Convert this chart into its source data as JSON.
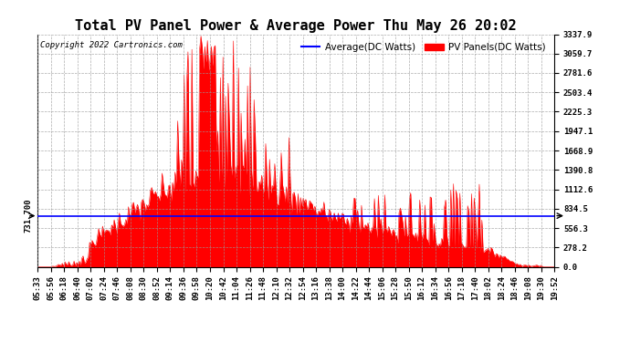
{
  "title": "Total PV Panel Power & Average Power Thu May 26 20:02",
  "copyright": "Copyright 2022 Cartronics.com",
  "legend_avg": "Average(DC Watts)",
  "legend_pv": "PV Panels(DC Watts)",
  "avg_color": "blue",
  "pv_color": "red",
  "bg_color": "#ffffff",
  "plot_bg_color": "#ffffff",
  "grid_color": "#999999",
  "ylim": [
    0.0,
    3337.9
  ],
  "yticks": [
    0.0,
    278.2,
    556.3,
    834.5,
    1112.6,
    1390.8,
    1668.9,
    1947.1,
    2225.3,
    2503.4,
    2781.6,
    3059.7,
    3337.9
  ],
  "avg_line_value": 731.7,
  "avg_label": "731.700",
  "title_fontsize": 11,
  "tick_fontsize": 6.5,
  "legend_fontsize": 7.5,
  "copyright_fontsize": 6.5,
  "x_tick_labels": [
    "05:33",
    "05:56",
    "06:18",
    "06:40",
    "07:02",
    "07:24",
    "07:46",
    "08:08",
    "08:30",
    "08:52",
    "09:14",
    "09:36",
    "09:58",
    "10:20",
    "10:42",
    "11:04",
    "11:26",
    "11:48",
    "12:10",
    "12:32",
    "12:54",
    "13:16",
    "13:38",
    "14:00",
    "14:22",
    "14:44",
    "15:06",
    "15:28",
    "15:50",
    "16:12",
    "16:34",
    "16:56",
    "17:18",
    "17:40",
    "18:02",
    "18:24",
    "18:46",
    "19:08",
    "19:30",
    "19:52"
  ]
}
